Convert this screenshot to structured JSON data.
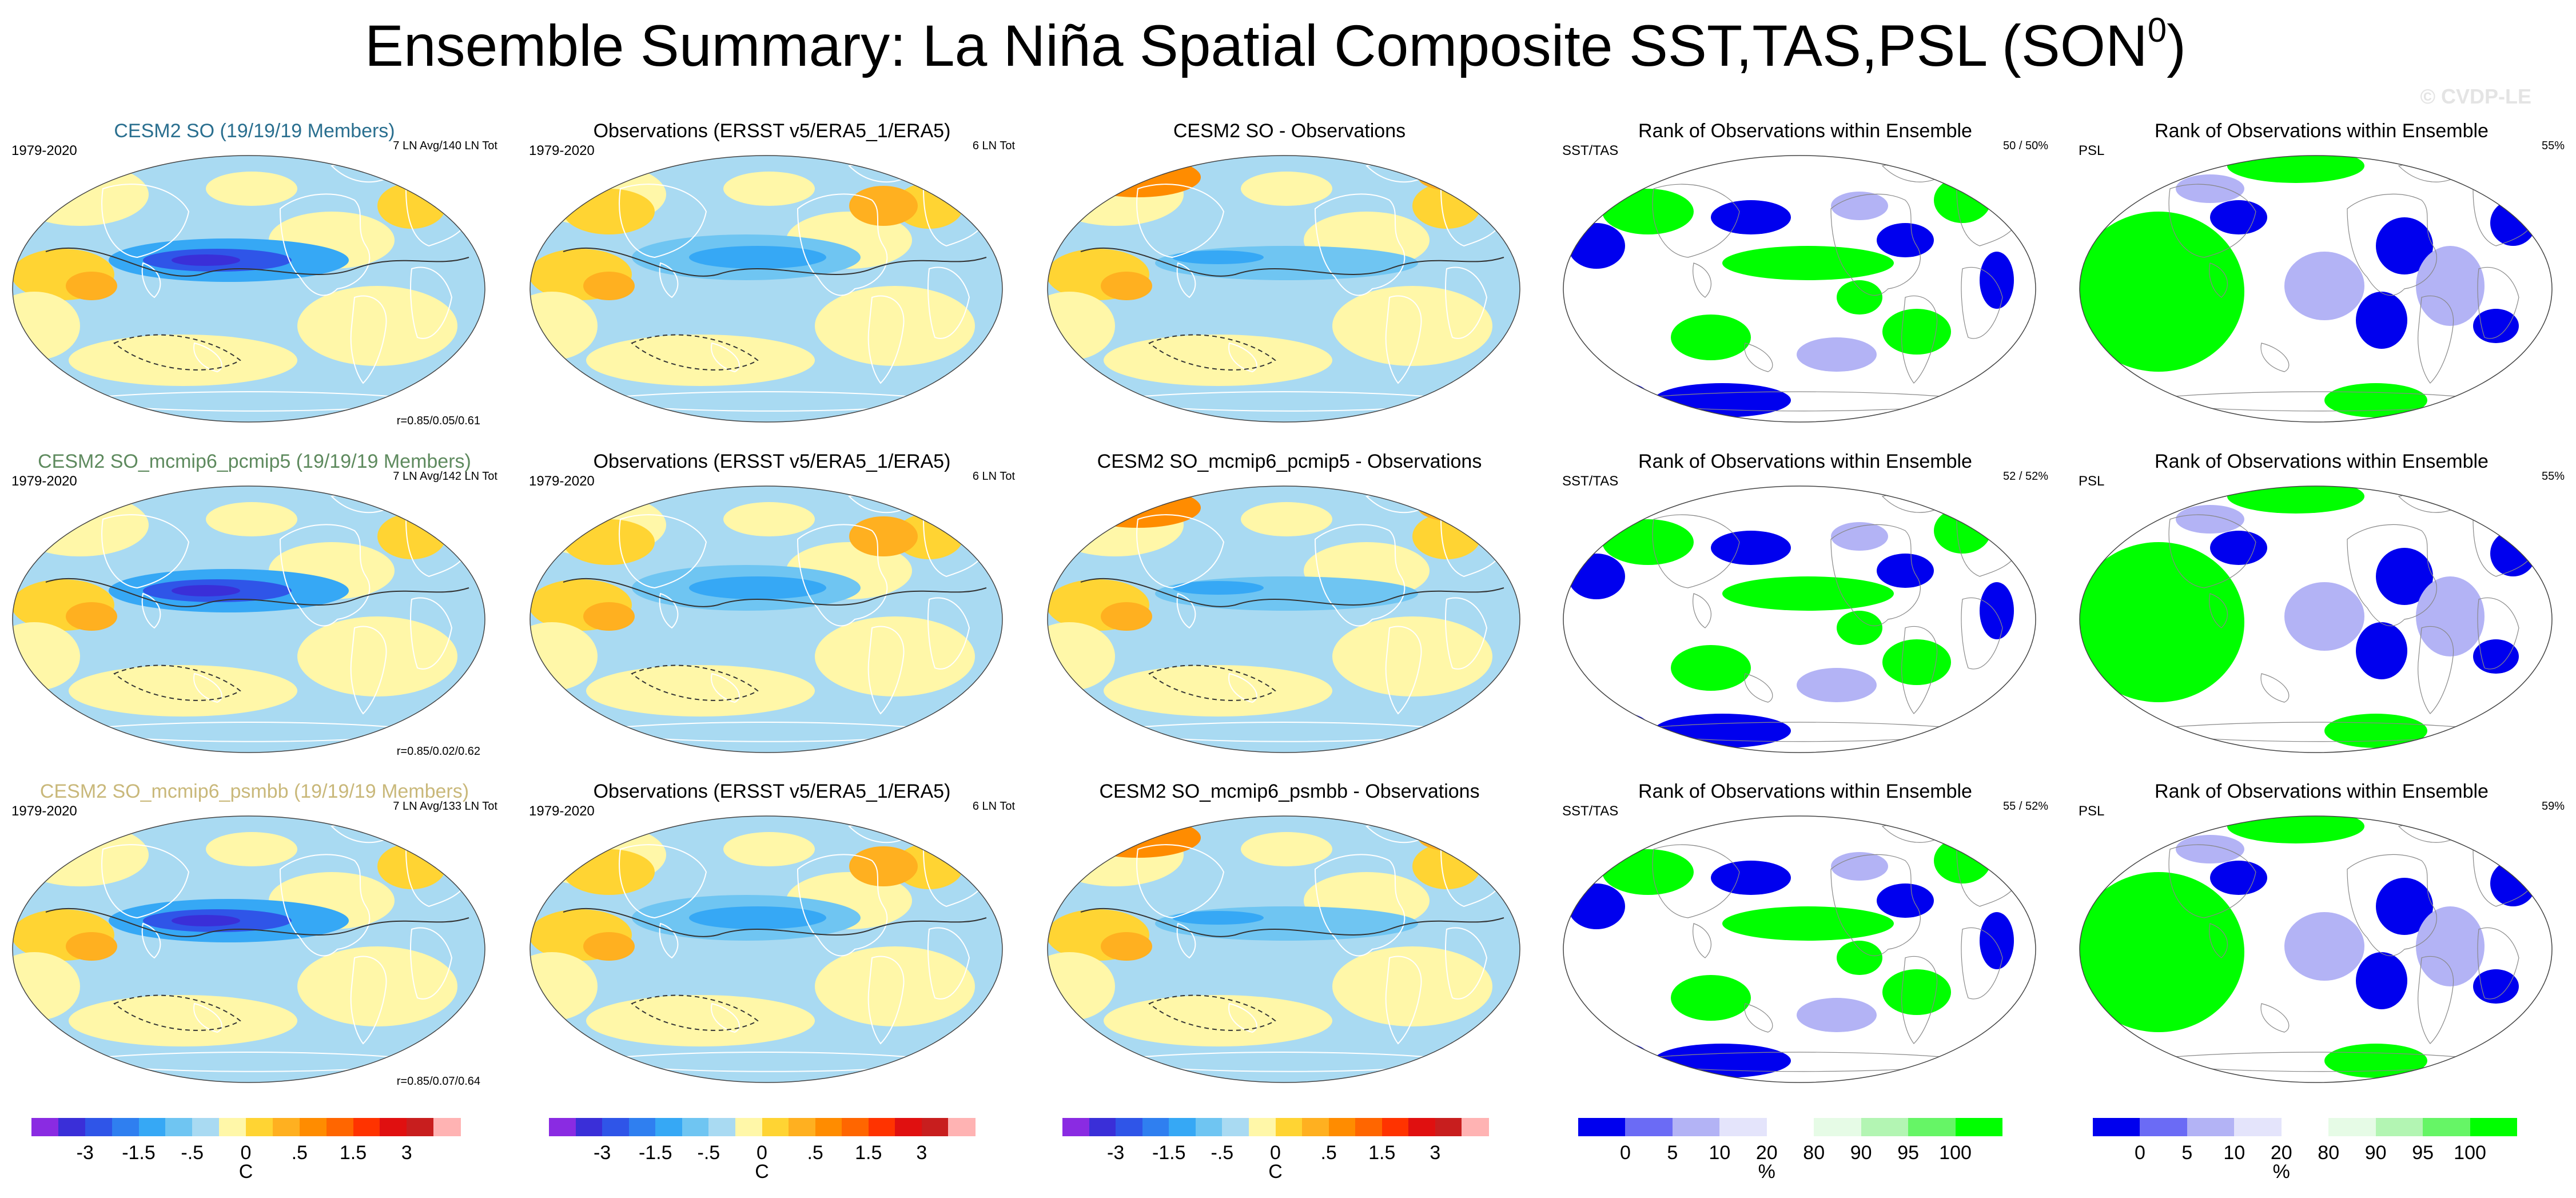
{
  "figure": {
    "title": "Ensemble Summary: La Niña Spatial Composite SST,TAS,PSL (SON",
    "title_sup": "0",
    "title_close": ")",
    "watermark": "© CVDP-LE"
  },
  "colors": {
    "ensemble_title": "#2a6f8f",
    "pcmip5_title": "#5e8a5e",
    "psmbb_title": "#c9b87a",
    "rank_green": "#00ff00",
    "rank_blue": "#0000ee",
    "rank_lightblue": "#b3b3f5"
  },
  "rows": [
    {
      "model": {
        "title": "CESM2 SO (19/19/19 Members)",
        "period": "1979-2020",
        "count": "7 LN Avg/140 LN Tot",
        "corr": "r=0.85/0.05/0.61"
      },
      "obs": {
        "title": "Observations (ERSST v5/ERA5_1/ERA5)",
        "period": "1979-2020",
        "count": "6 LN Tot"
      },
      "diff": {
        "title": "CESM2 SO - Observations"
      },
      "rank_sst": {
        "title": "Rank of Observations within Ensemble",
        "label": "SST/TAS",
        "pct": "50 /  50%"
      },
      "rank_psl": {
        "title": "Rank of Observations within Ensemble",
        "label": "PSL",
        "pct": "55%"
      }
    },
    {
      "model": {
        "title": "CESM2 SO_mcmip6_pcmip5 (19/19/19 Members)",
        "period": "1979-2020",
        "count": "7 LN Avg/142 LN Tot",
        "corr": "r=0.85/0.02/0.62"
      },
      "obs": {
        "title": "Observations (ERSST v5/ERA5_1/ERA5)",
        "period": "1979-2020",
        "count": "6 LN Tot"
      },
      "diff": {
        "title": "CESM2 SO_mcmip6_pcmip5 - Observations"
      },
      "rank_sst": {
        "title": "Rank of Observations within Ensemble",
        "label": "SST/TAS",
        "pct": "52 /  52%"
      },
      "rank_psl": {
        "title": "Rank of Observations within Ensemble",
        "label": "PSL",
        "pct": "55%"
      }
    },
    {
      "model": {
        "title": "CESM2 SO_mcmip6_psmbb (19/19/19 Members)",
        "period": "1979-2020",
        "count": "7 LN Avg/133 LN Tot",
        "corr": "r=0.85/0.07/0.64"
      },
      "obs": {
        "title": "Observations (ERSST v5/ERA5_1/ERA5)",
        "period": "1979-2020",
        "count": "6 LN Tot"
      },
      "diff": {
        "title": "CESM2 SO_mcmip6_psmbb - Observations"
      },
      "rank_sst": {
        "title": "Rank of Observations within Ensemble",
        "label": "SST/TAS",
        "pct": "55 /  52%"
      },
      "rank_psl": {
        "title": "Rank of Observations within Ensemble",
        "label": "PSL",
        "pct": "59%"
      }
    }
  ],
  "colorbar_temp": {
    "ticks": [
      "-3",
      "-1.5",
      "-.5",
      "0",
      ".5",
      "1.5",
      "3"
    ],
    "unit": "C",
    "swatches": [
      "#8a2be2",
      "#3a2fd8",
      "#2f55e8",
      "#2f7ff0",
      "#36a8f5",
      "#6fc5f2",
      "#a9daf2",
      "#fff7a8",
      "#ffd433",
      "#ffb020",
      "#ff8c00",
      "#ff6600",
      "#ff3300",
      "#e01010",
      "#c81e1e",
      "#ffb3b3"
    ]
  },
  "colorbar_rank": {
    "ticks": [
      "0",
      "5",
      "10",
      "20",
      "80",
      "90",
      "95",
      "100"
    ],
    "unit": "%",
    "swatches": [
      "#0000ee",
      "#6b6bf5",
      "#b3b3f5",
      "#e4e4fb",
      "#ffffff",
      "#e6fbe6",
      "#b3f5b3",
      "#66f566",
      "#00ff00"
    ]
  }
}
